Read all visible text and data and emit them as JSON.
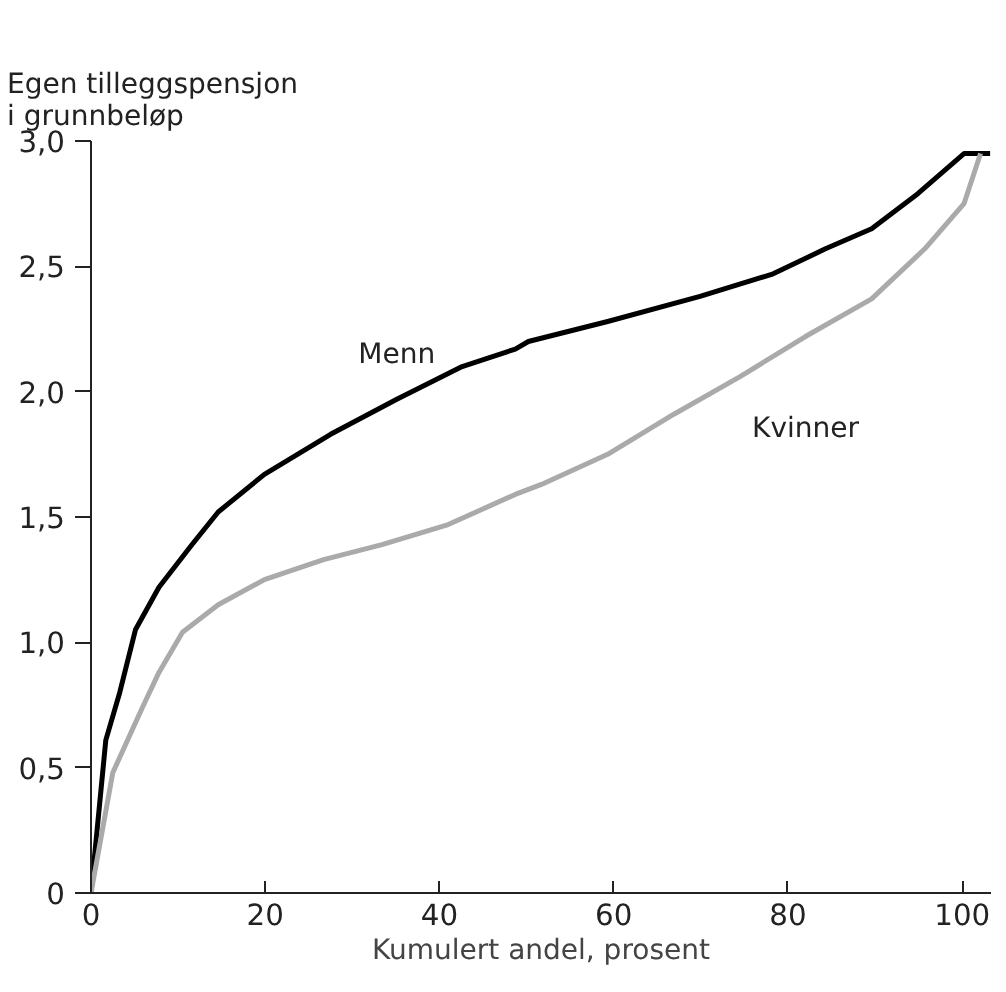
{
  "chart_data": {
    "type": "line",
    "ylabel": "Egen tilleggspensjon\ni grunnbeløp",
    "xlabel": "Kumulert andel, prosent",
    "xlim": [
      0,
      103.3
    ],
    "ylim": [
      0,
      3.0
    ],
    "xticks": [
      0,
      20,
      40,
      60,
      80,
      100
    ],
    "yticks": [
      0,
      {
        "value": 0.5,
        "label": "0,5"
      },
      {
        "value": 1.0,
        "label": "1,0"
      },
      {
        "value": 1.5,
        "label": "1,5"
      },
      {
        "value": 2.0,
        "label": "2,0"
      },
      {
        "value": 2.5,
        "label": "2,5"
      },
      {
        "value": 3.0,
        "label": "3,0"
      }
    ],
    "grid": false,
    "marker": "none",
    "line_style": "solid",
    "series": [
      {
        "name": "Menn",
        "color": "#000000",
        "x": [
          0,
          1.7,
          3.3,
          5.1,
          7.8,
          11.6,
          14.6,
          19.9,
          27.5,
          35.1,
          42.6,
          48.7,
          50.2,
          59.3,
          69.9,
          78.3,
          84.3,
          89.6,
          94.9,
          100.2,
          103.2
        ],
        "values": [
          0,
          0.61,
          0.8,
          1.05,
          1.22,
          1.39,
          1.52,
          1.67,
          1.83,
          1.97,
          2.1,
          2.17,
          2.2,
          2.28,
          2.38,
          2.47,
          2.57,
          2.65,
          2.79,
          2.95,
          2.95
        ]
      },
      {
        "name": "Kvinner",
        "color": "#aaaaaa",
        "x": [
          0,
          2.5,
          5.9,
          7.8,
          10.5,
          14.6,
          19.9,
          26.7,
          33.4,
          41.0,
          48.7,
          51.7,
          59.3,
          66.9,
          74.5,
          82.0,
          89.6,
          95.7,
          100.2,
          102.1
        ],
        "values": [
          0,
          0.48,
          0.74,
          0.88,
          1.04,
          1.15,
          1.25,
          1.33,
          1.39,
          1.47,
          1.59,
          1.63,
          1.75,
          1.91,
          2.06,
          2.22,
          2.37,
          2.57,
          2.75,
          2.95
        ]
      }
    ]
  }
}
